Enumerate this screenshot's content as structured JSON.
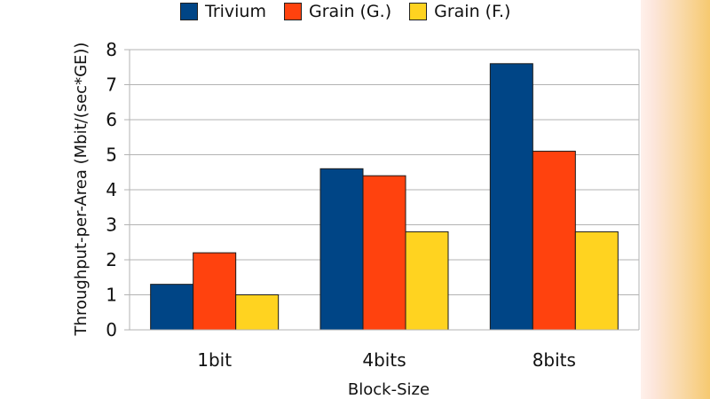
{
  "chart_data": {
    "type": "bar",
    "title": "",
    "xlabel": "Block-Size",
    "ylabel": "Throughput-per-Area (Mbit/(sec*GE))",
    "categories": [
      "1bit",
      "4bits",
      "8bits"
    ],
    "series": [
      {
        "name": "Trivium",
        "color": "#004586",
        "values": [
          1.3,
          4.6,
          7.6
        ]
      },
      {
        "name": "Grain (G.)",
        "color": "#ff420e",
        "values": [
          2.2,
          4.4,
          5.1
        ]
      },
      {
        "name": "Grain (F.)",
        "color": "#ffd320",
        "values": [
          1.0,
          2.8,
          2.8
        ]
      }
    ],
    "ylim": [
      0,
      8
    ],
    "yticks": [
      "0",
      "1",
      "2",
      "3",
      "4",
      "5",
      "6",
      "7",
      "8"
    ],
    "grid": true,
    "legend_position": "top"
  }
}
